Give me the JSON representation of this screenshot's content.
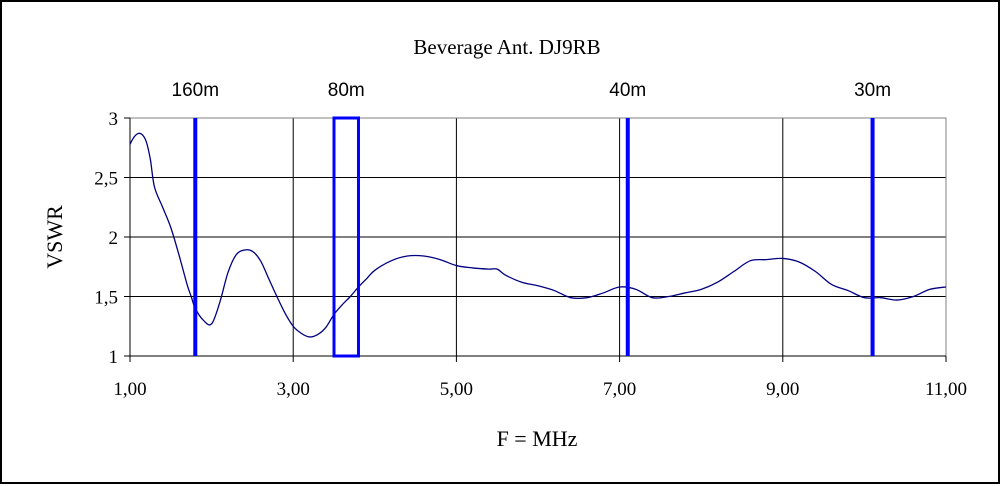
{
  "chart_data": {
    "type": "line",
    "title": "Beverage Ant. DJ9RB",
    "xlabel": "F = MHz",
    "ylabel": "VSWR",
    "xlim": [
      1,
      11
    ],
    "ylim": [
      1,
      3
    ],
    "x_ticks": [
      1,
      3,
      5,
      7,
      9,
      11
    ],
    "x_tick_labels": [
      "1,00",
      "3,00",
      "5,00",
      "7,00",
      "9,00",
      "11,00"
    ],
    "y_ticks": [
      1,
      1.5,
      2,
      2.5,
      3
    ],
    "y_tick_labels": [
      "1",
      "1,5",
      "2",
      "2,5",
      "3"
    ],
    "grid": true,
    "legend": "none",
    "line_color": "#000080",
    "marker_color": "#0000ff",
    "band_markers": [
      {
        "label": "160m",
        "x": 1.8
      },
      {
        "label": "80m",
        "x_start": 3.5,
        "x_end": 3.8
      },
      {
        "label": "40m",
        "x": 7.1
      },
      {
        "label": "30m",
        "x": 10.1
      }
    ],
    "series": [
      {
        "x": [
          1.0,
          1.05,
          1.1,
          1.15,
          1.2,
          1.25,
          1.3,
          1.4,
          1.5,
          1.6,
          1.7,
          1.75,
          1.8,
          1.9,
          2.0,
          2.1,
          2.2,
          2.3,
          2.4,
          2.5,
          2.6,
          2.7,
          2.8,
          2.9,
          3.0,
          3.1,
          3.2,
          3.3,
          3.4,
          3.5,
          3.6,
          3.7,
          3.8,
          3.9,
          4.0,
          4.2,
          4.4,
          4.6,
          4.8,
          5.0,
          5.2,
          5.4,
          5.5,
          5.6,
          5.8,
          6.0,
          6.2,
          6.4,
          6.6,
          6.8,
          7.0,
          7.2,
          7.4,
          7.6,
          7.8,
          8.0,
          8.2,
          8.4,
          8.6,
          8.8,
          9.0,
          9.2,
          9.4,
          9.6,
          9.8,
          10.0,
          10.2,
          10.4,
          10.6,
          10.8,
          11.0
        ],
        "y": [
          2.78,
          2.84,
          2.87,
          2.86,
          2.8,
          2.65,
          2.42,
          2.25,
          2.08,
          1.85,
          1.6,
          1.5,
          1.4,
          1.3,
          1.27,
          1.45,
          1.7,
          1.85,
          1.89,
          1.88,
          1.8,
          1.65,
          1.5,
          1.36,
          1.25,
          1.19,
          1.16,
          1.18,
          1.24,
          1.35,
          1.43,
          1.5,
          1.58,
          1.65,
          1.72,
          1.8,
          1.84,
          1.84,
          1.81,
          1.76,
          1.74,
          1.73,
          1.73,
          1.68,
          1.62,
          1.59,
          1.55,
          1.49,
          1.49,
          1.53,
          1.58,
          1.56,
          1.49,
          1.5,
          1.53,
          1.56,
          1.62,
          1.71,
          1.8,
          1.81,
          1.82,
          1.79,
          1.71,
          1.6,
          1.55,
          1.49,
          1.49,
          1.47,
          1.5,
          1.56,
          1.58
        ]
      }
    ]
  }
}
